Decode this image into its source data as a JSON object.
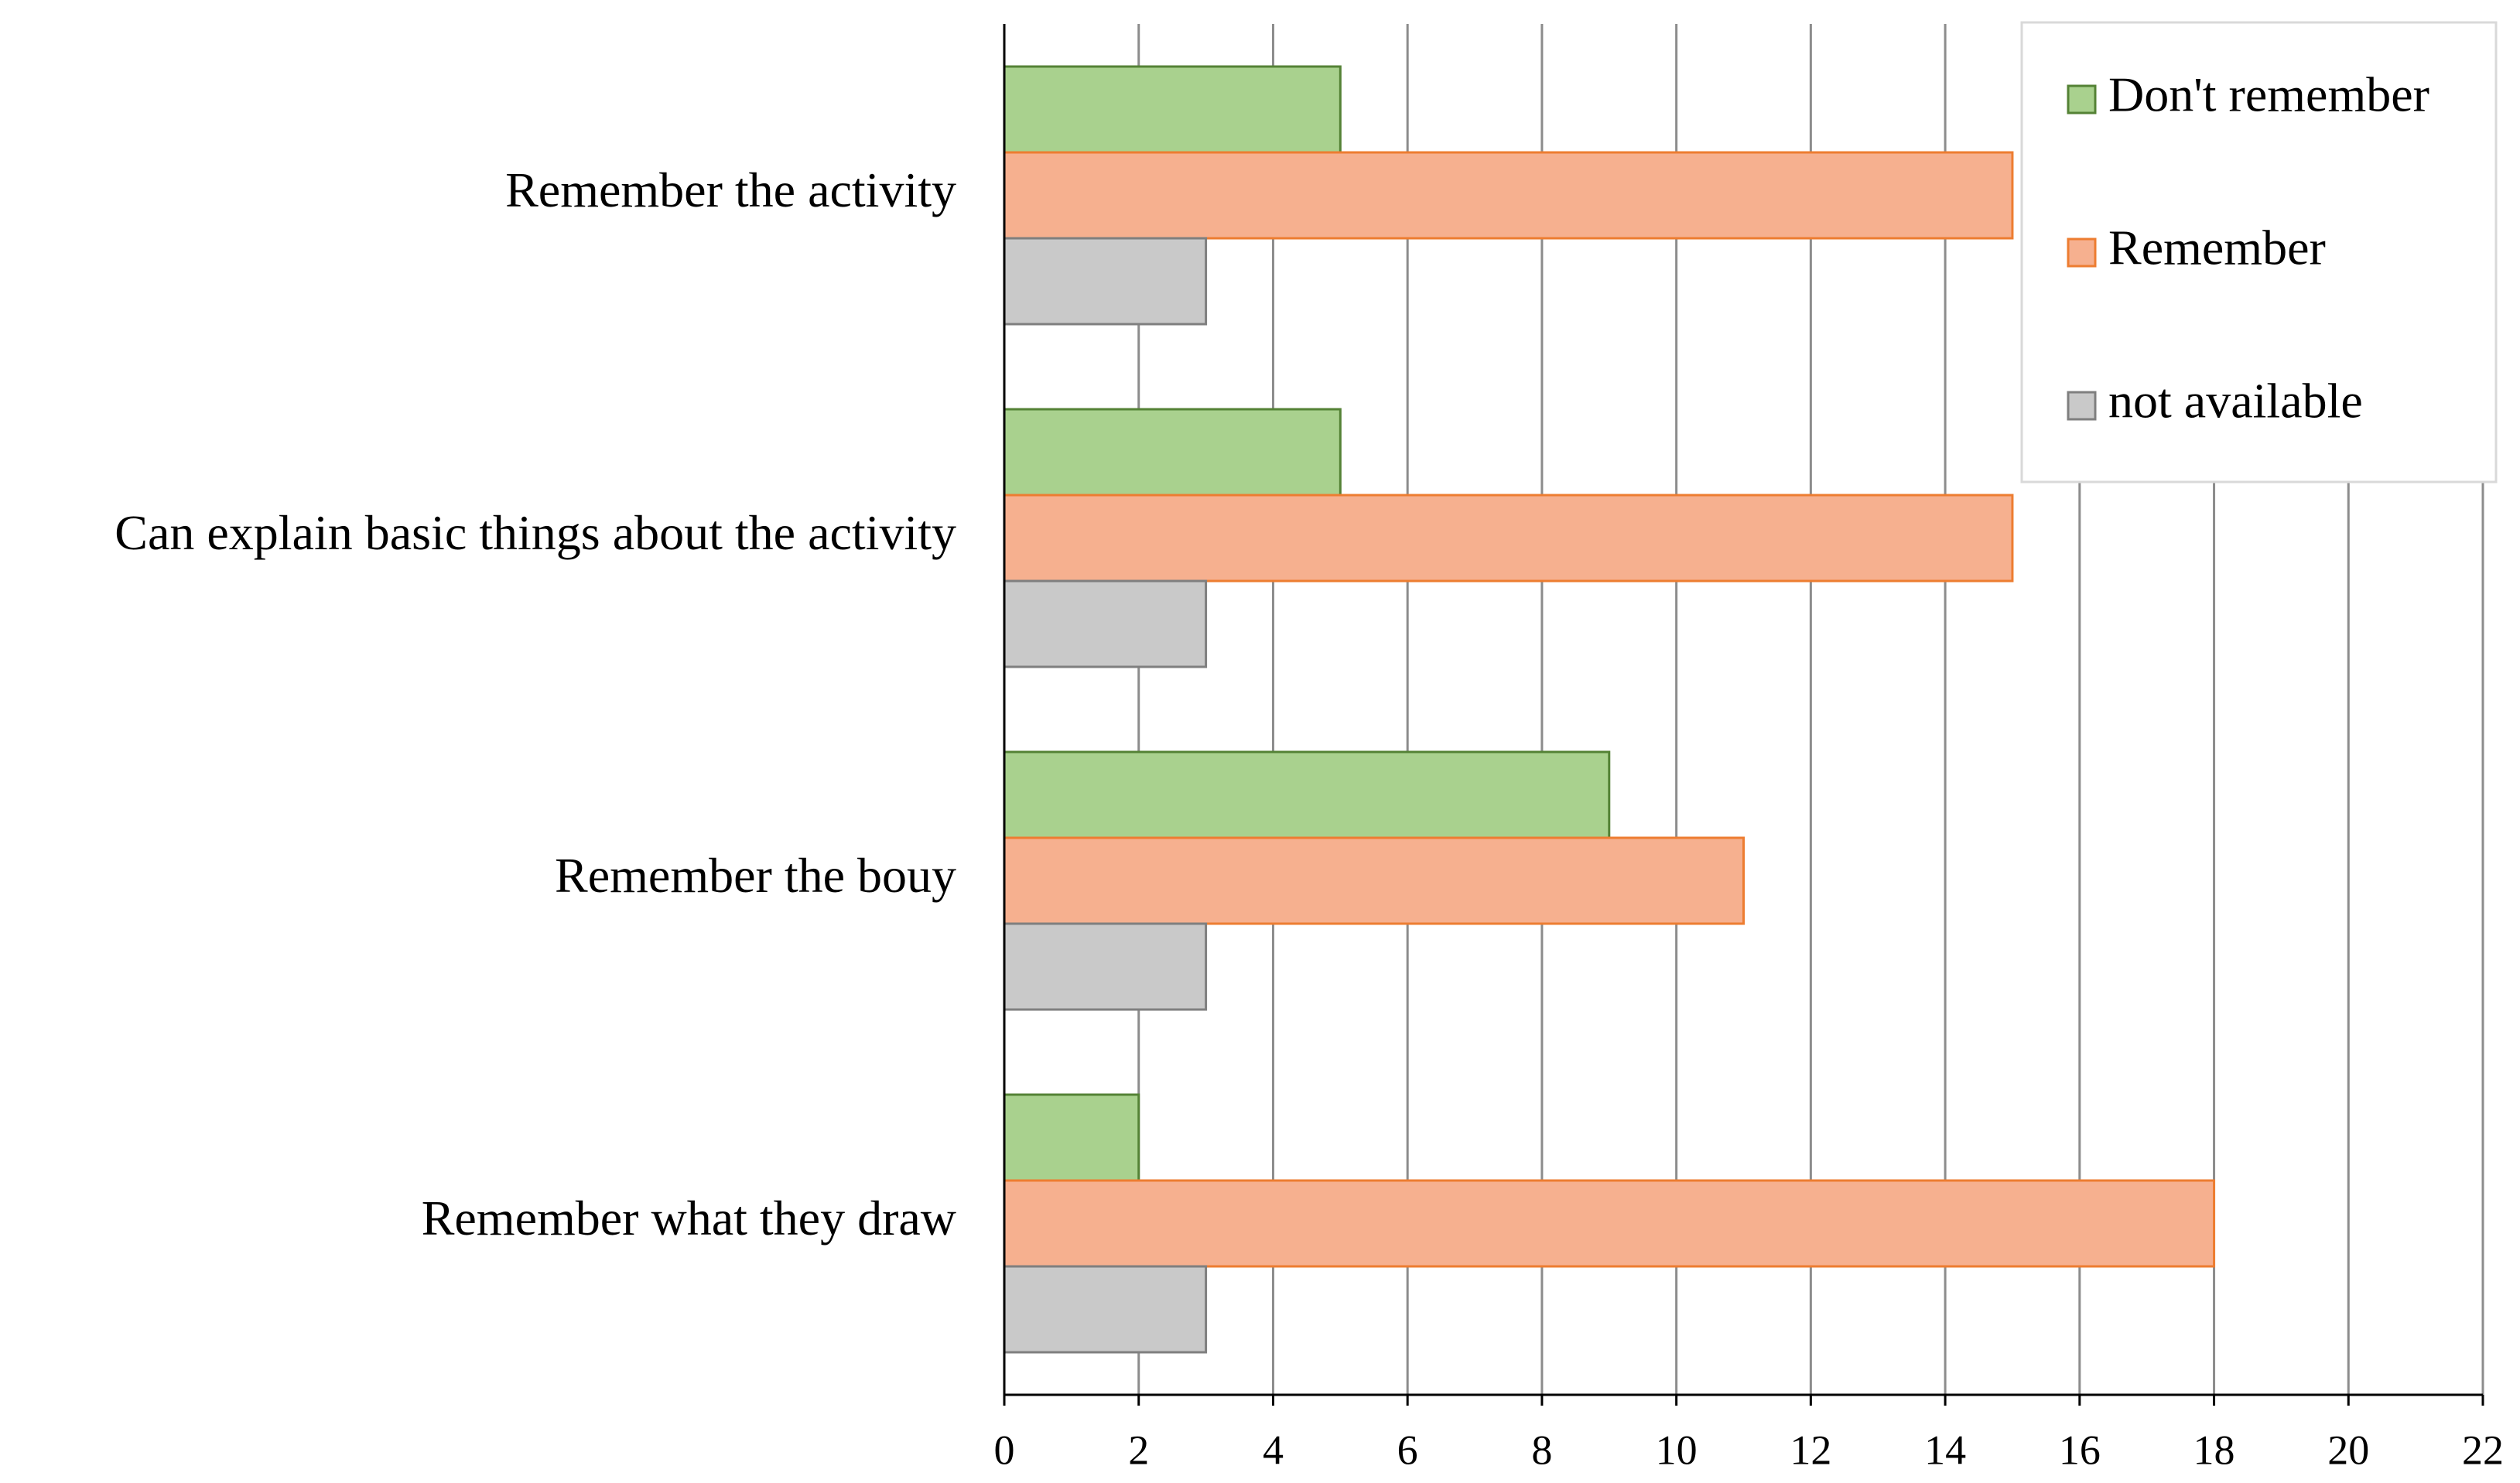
{
  "chart_data": {
    "type": "barh",
    "categories": [
      "Remember the activity",
      "Can explain basic things about the activity",
      "Remember the bouy",
      "Remember what they draw"
    ],
    "series": [
      {
        "name": "Don't remember",
        "color": "#a9d18e",
        "edge": "#548235",
        "values": [
          5,
          5,
          9,
          2
        ]
      },
      {
        "name": "Remember",
        "color": "#f6b08f",
        "edge": "#ed7d31",
        "values": [
          15,
          15,
          11,
          18
        ]
      },
      {
        "name": "not available",
        "color": "#c9c9c9",
        "edge": "#7f7f7f",
        "values": [
          3,
          3,
          3,
          3
        ]
      }
    ],
    "xlim": [
      0,
      22
    ],
    "xticks": [
      0,
      2,
      4,
      6,
      8,
      10,
      12,
      14,
      16,
      18,
      20,
      22
    ],
    "grid": true,
    "legend": "upper right"
  }
}
